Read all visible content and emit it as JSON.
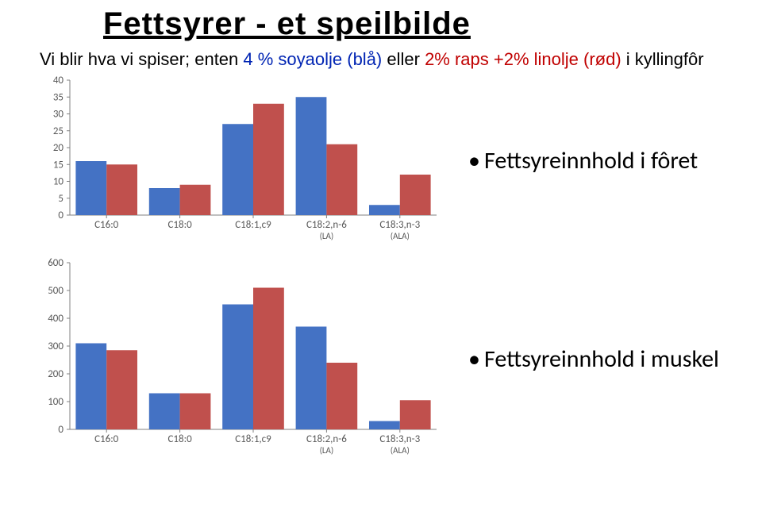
{
  "title": "Fettsyrer - et speilbilde",
  "subtitle_plain1": "Vi blir hva vi spiser; enten ",
  "subtitle_blue": "4 % soyaolje (blå) ",
  "subtitle_plain2": "eller ",
  "subtitle_red": "2% raps +2% linolje (rød) ",
  "subtitle_plain3": "i kyllingfôr",
  "chart1": {
    "type": "bar",
    "categories": [
      "C16:0",
      "C18:0",
      "C18:1,c9",
      "C18:2,n-6",
      "C18:3,n-3"
    ],
    "sublabels": [
      "",
      "",
      "",
      "(LA)",
      "(ALA)"
    ],
    "series": [
      {
        "name": "Soyaolje (blå)",
        "color": "#4472c4",
        "values": [
          16,
          8,
          27,
          35,
          3
        ]
      },
      {
        "name": "Raps+linolje (rød)",
        "color": "#c0504d",
        "values": [
          15,
          9,
          33,
          21,
          12
        ]
      }
    ],
    "ylim": [
      0,
      40
    ],
    "ytick_step": 5,
    "background": "#ffffff",
    "axis_color": "#808080",
    "axis_fontsize": 13,
    "bar_width_ratio": 0.42
  },
  "bullet1": "Fettsyreinnhold i fôret",
  "chart2": {
    "type": "bar",
    "categories": [
      "C16:0",
      "C18:0",
      "C18:1,c9",
      "C18:2,n-6",
      "C18:3,n-3"
    ],
    "sublabels": [
      "",
      "",
      "",
      "(LA)",
      "(ALA)"
    ],
    "series": [
      {
        "name": "Soyaolje (blå)",
        "color": "#4472c4",
        "values": [
          310,
          130,
          450,
          370,
          30
        ]
      },
      {
        "name": "Raps+linolje (rød)",
        "color": "#c0504d",
        "values": [
          285,
          130,
          510,
          240,
          105
        ]
      }
    ],
    "ylim": [
      0,
      600
    ],
    "ytick_step": 100,
    "background": "#ffffff",
    "axis_color": "#808080",
    "axis_fontsize": 13,
    "bar_width_ratio": 0.42
  },
  "bullet2": "Fettsyreinnhold i muskel"
}
